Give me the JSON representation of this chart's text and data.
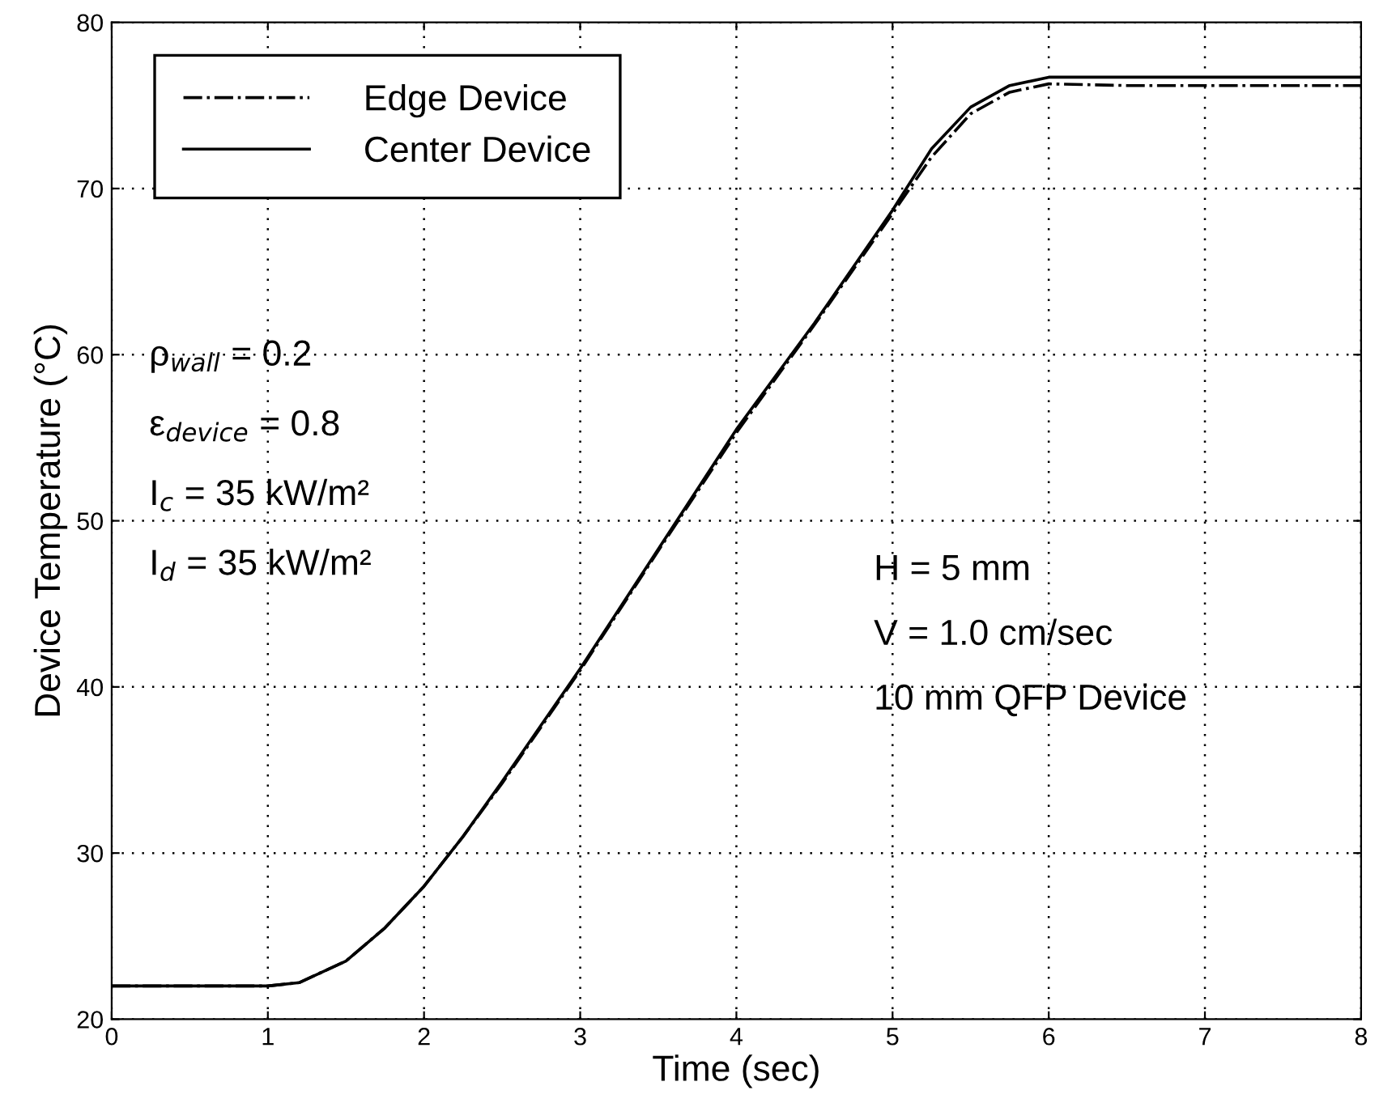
{
  "chart_data": {
    "type": "line",
    "xlabel": "Time (sec)",
    "ylabel": "Device Temperature (°C)",
    "xlim": [
      0,
      8
    ],
    "xticks": [
      0,
      1,
      2,
      3,
      4,
      5,
      6,
      7,
      8
    ],
    "ylim": [
      20,
      80
    ],
    "yticks": [
      20,
      30,
      40,
      50,
      60,
      70,
      80
    ],
    "grid": true,
    "legend": "top left",
    "x": [
      0,
      0.5,
      1,
      1.2,
      1.5,
      1.75,
      2,
      2.25,
      2.5,
      2.75,
      3,
      3.5,
      4,
      4.5,
      5,
      5.25,
      5.5,
      5.75,
      6,
      6.5,
      7,
      7.5,
      8
    ],
    "series": [
      {
        "name": "Edge Device",
        "color": "#000000",
        "line_style": "dashed",
        "values": [
          22,
          22,
          22,
          22.2,
          23.5,
          25.5,
          28,
          31,
          34.2,
          37.6,
          41,
          48.2,
          55.3,
          61.8,
          68.5,
          71.9,
          74.5,
          75.8,
          76.3,
          76.2,
          76.2,
          76.2,
          76.2
        ]
      },
      {
        "name": "Center Device",
        "color": "#000000",
        "line_style": "solid",
        "values": [
          22,
          22,
          22,
          22.2,
          23.5,
          25.5,
          28,
          31,
          34.3,
          37.7,
          41.1,
          48.3,
          55.5,
          61.9,
          68.7,
          72.4,
          74.9,
          76.2,
          76.7,
          76.7,
          76.7,
          76.7,
          76.7
        ]
      }
    ],
    "annotations": [
      "ρ$_{wall}$ = 0.2",
      "ε$_{device}$ = 0.8",
      "I$_{c}$ = 35 kW/m²",
      "I$_{d}$ = 35 kW/m²",
      "H = 5 mm",
      "V = 1.0 cm/sec",
      "10 mm QFP Device"
    ]
  }
}
